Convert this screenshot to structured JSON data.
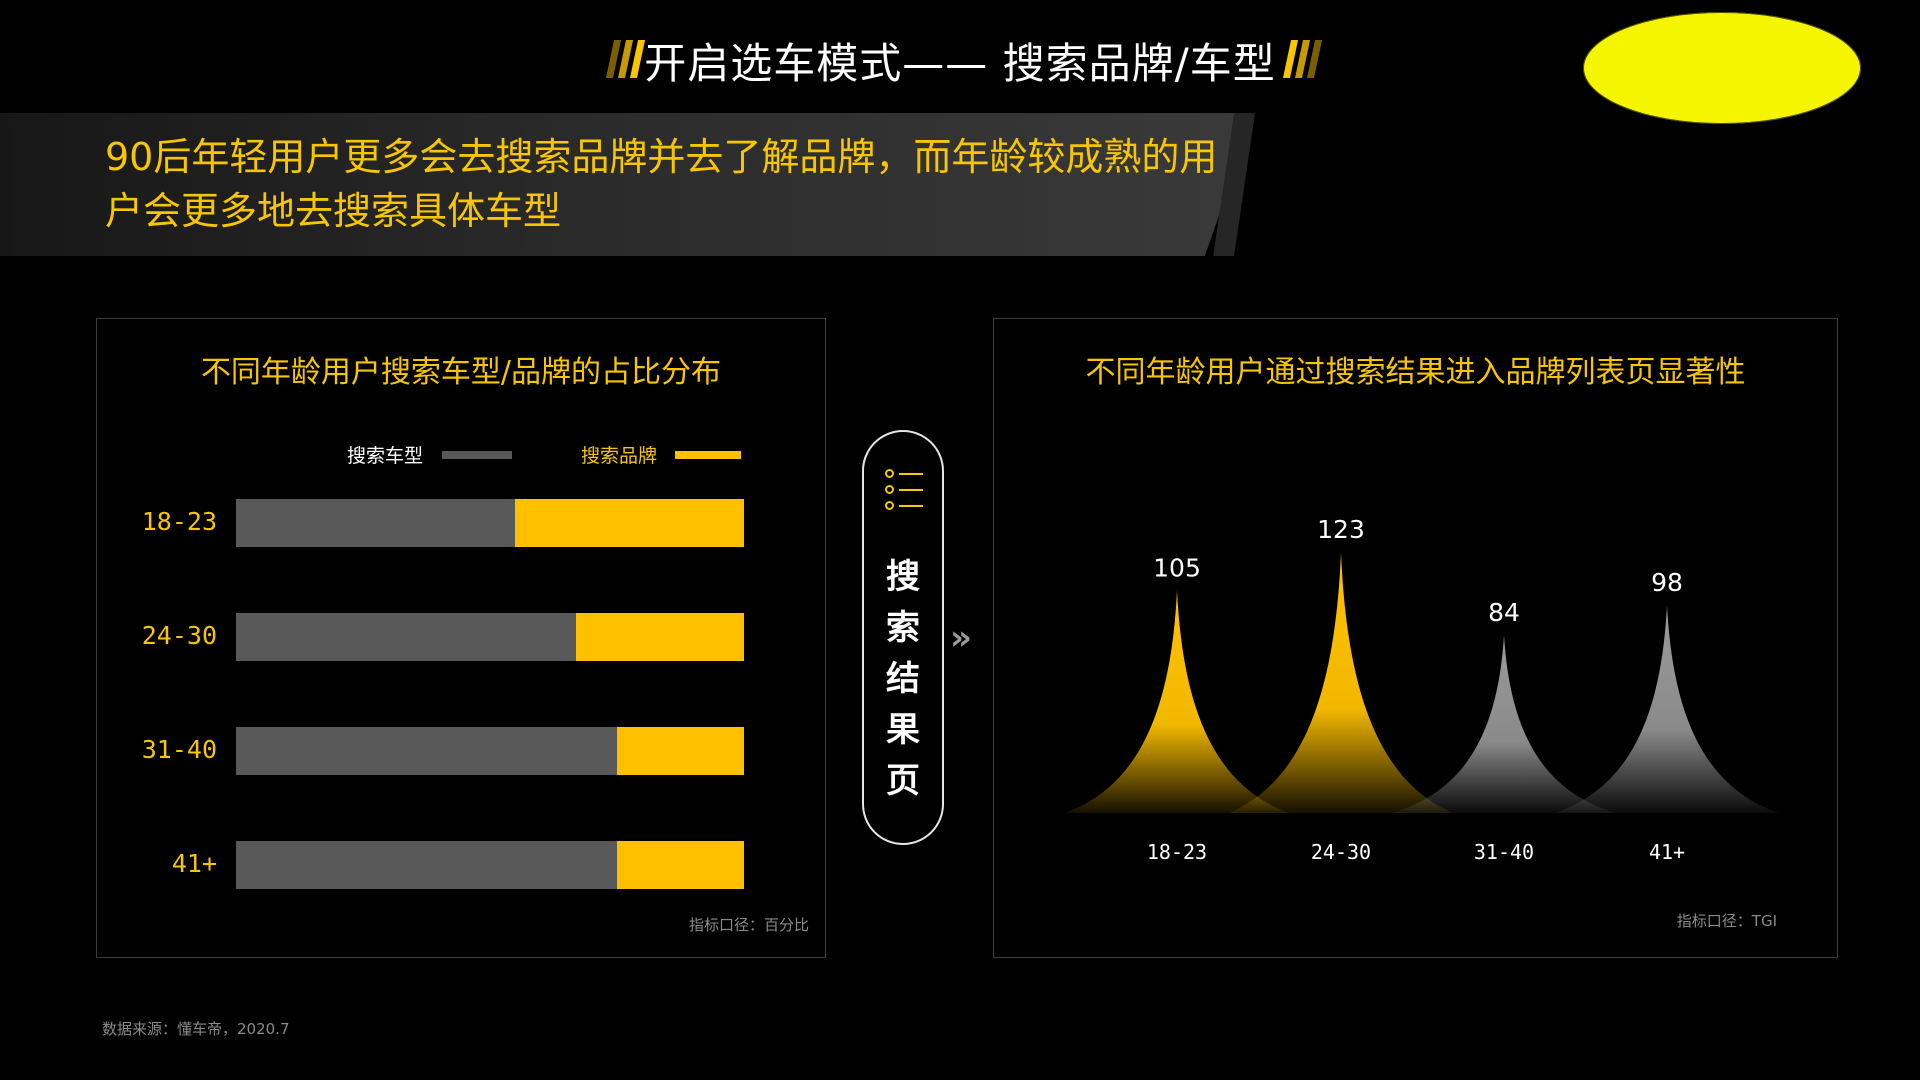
{
  "header": {
    "title": "开启选车模式—— 搜索品牌/车型",
    "accent": "#f7c600"
  },
  "subtitle": "90后年轻用户更多会去搜索品牌并去了解品牌，而年龄较成熟的用户会更多地去搜索具体车型",
  "center_label": "搜索结果页",
  "source": "数据来源：懂车帝，2020.7",
  "chart_data": [
    {
      "type": "bar",
      "stacked": true,
      "orientation": "horizontal",
      "title": "不同年龄用户搜索车型/品牌的占比分布",
      "categories": [
        "18-23",
        "24-30",
        "31-40",
        "41+"
      ],
      "series": [
        {
          "name": "搜索车型",
          "color": "#595959",
          "values": [
            55,
            67,
            75,
            75
          ]
        },
        {
          "name": "搜索品牌",
          "color": "#ffc000",
          "values": [
            45,
            33,
            25,
            25
          ]
        }
      ],
      "xlim": [
        0,
        100
      ],
      "note": "指标口径：百分比",
      "legend_position": "top-right"
    },
    {
      "type": "bar",
      "title": "不同年龄用户通过搜索结果进入品牌列表页显著性",
      "categories": [
        "18-23",
        "24-30",
        "31-40",
        "41+"
      ],
      "values": [
        105,
        123,
        84,
        98
      ],
      "colors": [
        "#ffc000",
        "#ffc000",
        "#8c8c8c",
        "#8c8c8c"
      ],
      "note": "指标口径：TGI"
    }
  ]
}
